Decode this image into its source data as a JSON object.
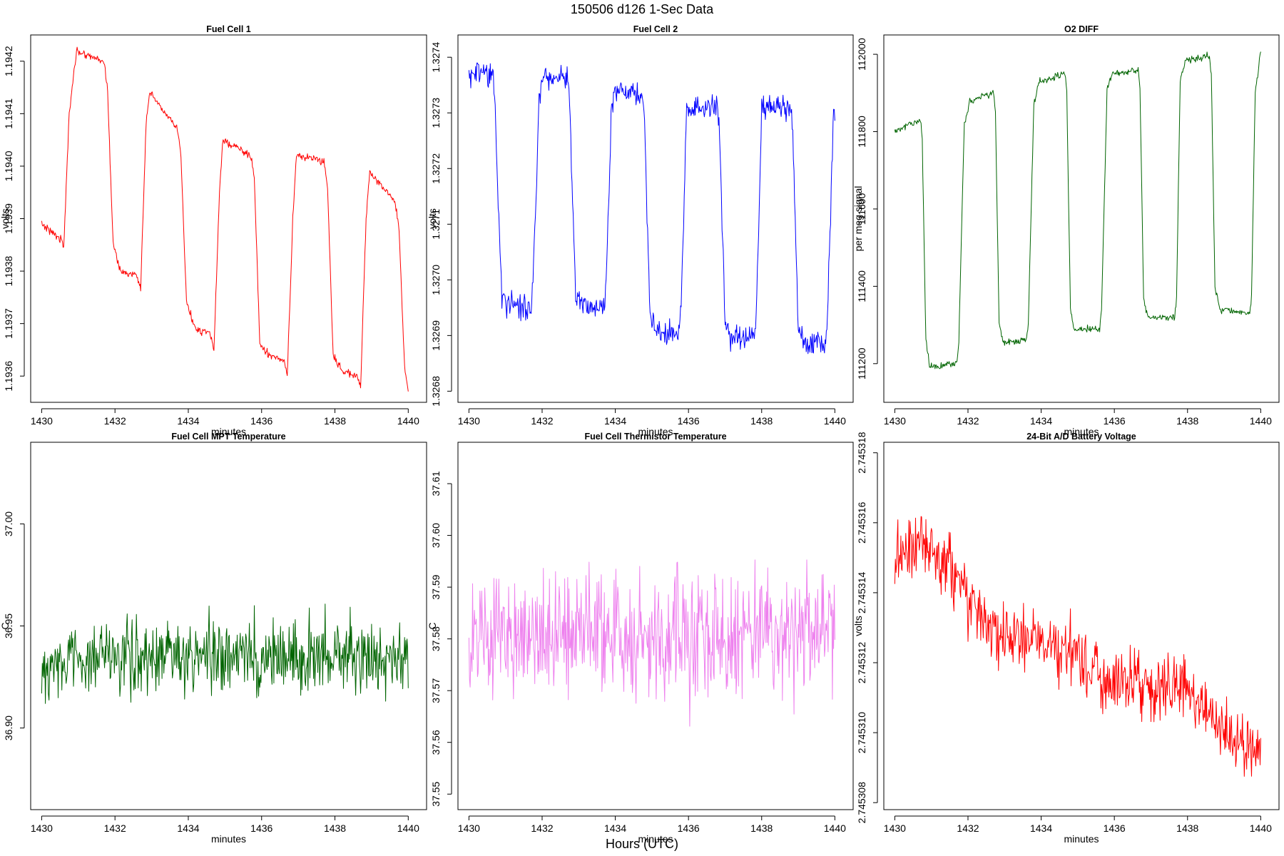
{
  "figure": {
    "title": "150506   d126   1-Sec Data",
    "bottom_label": "Hours (UTC)"
  },
  "chart_data": [
    {
      "type": "line",
      "title": "Fuel Cell 1",
      "xlabel": "minutes",
      "ylabel": "volts",
      "color": "#ff0000",
      "xlim": [
        1429.7,
        1440.5
      ],
      "ylim": [
        1.19355,
        1.19425
      ],
      "xticks": [
        "1430",
        "1432",
        "1434",
        "1436",
        "1438",
        "1440"
      ],
      "yticks": [
        "1.1936",
        "1.1937",
        "1.1938",
        "1.1939",
        "1.1940",
        "1.1941",
        "1.1942"
      ],
      "series": [
        {
          "name": "Fuel Cell 1",
          "noise": 7e-06,
          "x": [
            1430.0,
            1430.55,
            1430.6,
            1430.75,
            1430.95,
            1431.7,
            1431.8,
            1431.95,
            1432.15,
            1432.6,
            1432.7,
            1432.85,
            1432.95,
            1433.7,
            1433.8,
            1433.95,
            1434.2,
            1434.6,
            1434.7,
            1434.85,
            1434.95,
            1435.7,
            1435.8,
            1435.95,
            1436.2,
            1436.6,
            1436.7,
            1436.85,
            1436.95,
            1437.7,
            1437.8,
            1437.95,
            1438.2,
            1438.6,
            1438.7,
            1438.85,
            1438.95,
            1439.65,
            1439.75,
            1439.9,
            1440.0
          ],
          "y": [
            1.19389,
            1.19386,
            1.19384,
            1.1941,
            1.19422,
            1.1942,
            1.19414,
            1.19385,
            1.1938,
            1.19379,
            1.19377,
            1.19408,
            1.19414,
            1.19407,
            1.19402,
            1.19374,
            1.19369,
            1.19368,
            1.19365,
            1.19395,
            1.19405,
            1.19402,
            1.19398,
            1.19366,
            1.19364,
            1.19363,
            1.1936,
            1.1939,
            1.19402,
            1.19401,
            1.19396,
            1.19364,
            1.19361,
            1.1936,
            1.19358,
            1.1939,
            1.19399,
            1.19393,
            1.19388,
            1.19362,
            1.19357
          ]
        }
      ]
    },
    {
      "type": "line",
      "title": "Fuel Cell 2",
      "xlabel": "minutes",
      "ylabel": "volts",
      "color": "#0000ff",
      "xlim": [
        1429.7,
        1440.5
      ],
      "ylim": [
        1.32678,
        1.32744
      ],
      "xticks": [
        "1430",
        "1432",
        "1434",
        "1436",
        "1438",
        "1440"
      ],
      "yticks": [
        "1.3268",
        "1.3269",
        "1.3270",
        "1.3271",
        "1.3272",
        "1.3273",
        "1.3274"
      ],
      "series": [
        {
          "name": "Fuel Cell 2",
          "noise": 2.2e-05,
          "x": [
            1430.0,
            1430.65,
            1430.7,
            1430.9,
            1431.0,
            1431.7,
            1431.75,
            1431.92,
            1432.0,
            1432.7,
            1432.75,
            1432.92,
            1433.0,
            1433.7,
            1433.75,
            1433.9,
            1434.0,
            1434.75,
            1434.8,
            1434.95,
            1435.05,
            1435.75,
            1435.8,
            1435.95,
            1436.05,
            1436.8,
            1436.85,
            1437.0,
            1437.1,
            1437.8,
            1437.85,
            1438.0,
            1438.1,
            1438.8,
            1438.85,
            1439.0,
            1439.1,
            1439.75,
            1439.8,
            1439.95,
            1440.0
          ],
          "y": [
            1.32737,
            1.32737,
            1.32732,
            1.32697,
            1.32696,
            1.32695,
            1.327,
            1.32733,
            1.32736,
            1.32737,
            1.32732,
            1.32697,
            1.32696,
            1.32695,
            1.327,
            1.32732,
            1.32734,
            1.32733,
            1.32728,
            1.32693,
            1.32691,
            1.3269,
            1.32695,
            1.3273,
            1.32731,
            1.32731,
            1.32726,
            1.32692,
            1.3269,
            1.32689,
            1.32694,
            1.3273,
            1.32731,
            1.32731,
            1.32726,
            1.32691,
            1.32689,
            1.32688,
            1.32693,
            1.32728,
            1.32729
          ]
        }
      ]
    },
    {
      "type": "line",
      "title": "O2 DIFF",
      "xlabel": "minutes",
      "ylabel": "per meg signal",
      "color": "#006400",
      "xlim": [
        1429.7,
        1440.5
      ],
      "ylim": [
        111100,
        112050
      ],
      "xticks": [
        "1430",
        "1432",
        "1434",
        "1436",
        "1438",
        "1440"
      ],
      "yticks": [
        "111200",
        "111400",
        "111600",
        "111800",
        "112000"
      ],
      "series": [
        {
          "name": "O2 DIFF",
          "noise": 9,
          "x": [
            1430.0,
            1430.7,
            1430.75,
            1430.85,
            1430.95,
            1431.7,
            1431.75,
            1431.9,
            1432.05,
            1432.7,
            1432.75,
            1432.85,
            1432.95,
            1433.6,
            1433.65,
            1433.8,
            1433.95,
            1434.65,
            1434.7,
            1434.8,
            1434.9,
            1435.6,
            1435.65,
            1435.8,
            1435.95,
            1436.65,
            1436.7,
            1436.8,
            1436.9,
            1437.65,
            1437.7,
            1437.8,
            1437.95,
            1438.6,
            1438.65,
            1438.75,
            1438.9,
            1439.7,
            1439.75,
            1439.85,
            1440.0
          ],
          "y": [
            111800,
            111830,
            111780,
            111260,
            111190,
            111200,
            111260,
            111820,
            111880,
            111900,
            111850,
            111310,
            111255,
            111260,
            111310,
            111870,
            111930,
            111950,
            111900,
            111340,
            111290,
            111290,
            111340,
            111910,
            111950,
            111960,
            111910,
            111370,
            111320,
            111320,
            111370,
            111930,
            111985,
            111995,
            111950,
            111390,
            111340,
            111330,
            111380,
            111900,
            112010
          ]
        }
      ]
    },
    {
      "type": "line",
      "title": "Fuel Cell MPT Temperature",
      "xlabel": "minutes",
      "ylabel": "C",
      "color": "#006400",
      "xlim": [
        1429.7,
        1440.5
      ],
      "ylim": [
        36.86,
        37.04
      ],
      "xticks": [
        "1430",
        "1432",
        "1434",
        "1436",
        "1438",
        "1440"
      ],
      "yticks": [
        "36.90",
        "36.95",
        "37.00"
      ],
      "series": [
        {
          "name": "Fuel Cell MPT Temperature",
          "noise": 0.018,
          "x": [
            1430.0,
            1431.0,
            1432.0,
            1433.0,
            1434.0,
            1435.0,
            1436.0,
            1437.0,
            1438.0,
            1439.0,
            1440.0
          ],
          "y": [
            36.93,
            36.935,
            36.935,
            36.935,
            36.935,
            36.935,
            36.935,
            36.935,
            36.935,
            36.935,
            36.935
          ]
        }
      ]
    },
    {
      "type": "line",
      "title": "Fuel Cell Thermistor Temperature",
      "xlabel": "minutes",
      "ylabel": "C",
      "color": "#ee82ee",
      "xlim": [
        1429.7,
        1440.5
      ],
      "ylim": [
        37.547,
        37.618
      ],
      "xticks": [
        "1430",
        "1432",
        "1434",
        "1436",
        "1438",
        "1440"
      ],
      "yticks": [
        "37.55",
        "37.56",
        "37.57",
        "37.58",
        "37.59",
        "37.60",
        "37.61"
      ],
      "series": [
        {
          "name": "Fuel Cell Thermistor Temperature",
          "noise": 0.012,
          "x": [
            1430.0,
            1431.0,
            1432.0,
            1433.0,
            1434.0,
            1435.0,
            1436.0,
            1437.0,
            1438.0,
            1439.0,
            1440.0
          ],
          "y": [
            37.58,
            37.58,
            37.58,
            37.58,
            37.58,
            37.58,
            37.58,
            37.58,
            37.58,
            37.58,
            37.58
          ]
        }
      ]
    },
    {
      "type": "line",
      "title": "24-Bit A/D Battery Voltage",
      "xlabel": "minutes",
      "ylabel": "volts",
      "color": "#ff0000",
      "xlim": [
        1429.7,
        1440.5
      ],
      "ylim": [
        2.7453078,
        2.7453183
      ],
      "xticks": [
        "1430",
        "1432",
        "1434",
        "1436",
        "1438",
        "1440"
      ],
      "yticks": [
        "2.745308",
        "2.745310",
        "2.745312",
        "2.745314",
        "2.745316",
        "2.745318"
      ],
      "series": [
        {
          "name": "24-Bit A/D Battery Voltage",
          "noise": 9e-07,
          "x": [
            1430.0,
            1430.5,
            1431.0,
            1431.5,
            1432.0,
            1432.5,
            1433.0,
            1433.5,
            1434.0,
            1434.5,
            1435.0,
            1435.5,
            1436.0,
            1436.5,
            1437.0,
            1437.5,
            1438.0,
            1438.5,
            1439.0,
            1439.5,
            1440.0
          ],
          "y": [
            2.745315,
            2.7453152,
            2.7453152,
            2.7453148,
            2.7453138,
            2.7453131,
            2.7453128,
            2.7453126,
            2.7453128,
            2.7453125,
            2.7453122,
            2.7453117,
            2.7453113,
            2.7453115,
            2.7453112,
            2.7453112,
            2.7453113,
            2.7453106,
            2.7453102,
            2.7453098,
            2.7453092
          ]
        }
      ]
    }
  ]
}
